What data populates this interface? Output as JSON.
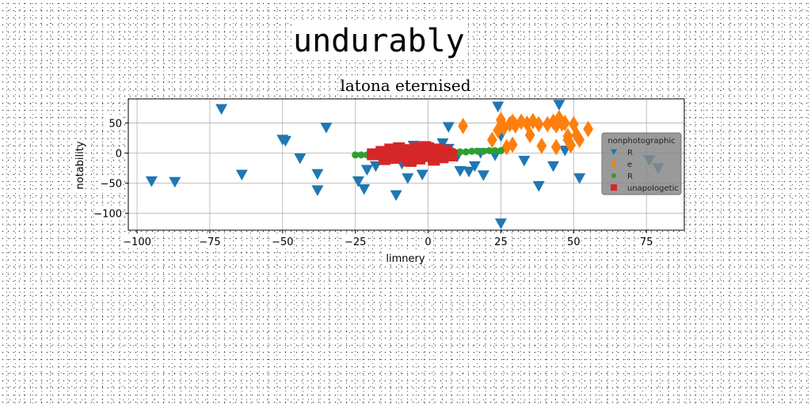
{
  "page": {
    "title": "undurably"
  },
  "chart_data": {
    "type": "scatter",
    "title": "latona eternised",
    "xlabel": "limnery",
    "ylabel": "notability",
    "xlim": [
      -103,
      88
    ],
    "ylim": [
      -128,
      90
    ],
    "xticks": [
      -100,
      -75,
      -50,
      -25,
      0,
      25,
      50,
      75
    ],
    "yticks": [
      50,
      0,
      -50,
      -100
    ],
    "grid": true,
    "legend": {
      "title": "nonphotographic",
      "placement": "right"
    },
    "series": [
      {
        "name": "R",
        "marker": "triangle-down",
        "color": "#1f77b4",
        "points": [
          [
            -95,
            -47
          ],
          [
            -87,
            -48
          ],
          [
            -71,
            73
          ],
          [
            -64,
            -36
          ],
          [
            -50,
            22
          ],
          [
            -49,
            20
          ],
          [
            -44,
            -9
          ],
          [
            -38,
            -35
          ],
          [
            -38,
            -62
          ],
          [
            -35,
            42
          ],
          [
            -24,
            -47
          ],
          [
            -22,
            -60
          ],
          [
            -21,
            -28
          ],
          [
            -18,
            -22
          ],
          [
            -11,
            -70
          ],
          [
            -9,
            -18
          ],
          [
            -7,
            -42
          ],
          [
            -5,
            12
          ],
          [
            -2,
            -36
          ],
          [
            -1,
            8
          ],
          [
            3,
            -10
          ],
          [
            5,
            -2
          ],
          [
            5,
            16
          ],
          [
            7,
            7
          ],
          [
            7,
            43
          ],
          [
            10,
            -6
          ],
          [
            11,
            -30
          ],
          [
            14,
            -31
          ],
          [
            16,
            -22
          ],
          [
            18,
            0
          ],
          [
            19,
            -37
          ],
          [
            23,
            -4
          ],
          [
            24,
            77
          ],
          [
            25,
            28
          ],
          [
            25,
            -117
          ],
          [
            33,
            -13
          ],
          [
            38,
            -55
          ],
          [
            43,
            -22
          ],
          [
            45,
            80
          ],
          [
            47,
            4
          ],
          [
            52,
            -42
          ],
          [
            76,
            -12
          ],
          [
            79,
            -25
          ]
        ]
      },
      {
        "name": "e",
        "marker": "diamond",
        "color": "#ff7f0e",
        "points": [
          [
            12,
            45
          ],
          [
            22,
            22
          ],
          [
            24,
            38
          ],
          [
            25,
            55
          ],
          [
            26,
            42
          ],
          [
            27,
            10
          ],
          [
            28,
            48
          ],
          [
            29,
            52
          ],
          [
            29,
            14
          ],
          [
            30,
            46
          ],
          [
            32,
            52
          ],
          [
            34,
            49
          ],
          [
            35,
            30
          ],
          [
            36,
            53
          ],
          [
            38,
            48
          ],
          [
            39,
            12
          ],
          [
            41,
            48
          ],
          [
            43,
            52
          ],
          [
            44,
            46
          ],
          [
            44,
            10
          ],
          [
            45,
            58
          ],
          [
            46,
            49
          ],
          [
            47,
            50
          ],
          [
            48,
            28
          ],
          [
            48,
            22
          ],
          [
            49,
            13
          ],
          [
            50,
            48
          ],
          [
            51,
            30
          ],
          [
            52,
            22
          ],
          [
            55,
            40
          ]
        ]
      },
      {
        "name": "R",
        "marker": "circle",
        "color": "#2ca02c",
        "points": [
          [
            -25,
            -3
          ],
          [
            -23,
            -3
          ],
          [
            -21,
            -3
          ],
          [
            -19,
            -2
          ],
          [
            -17,
            -2
          ],
          [
            -15,
            -2
          ],
          [
            -13,
            -2
          ],
          [
            -11,
            -1
          ],
          [
            -9,
            -1
          ],
          [
            -7,
            -1
          ],
          [
            -5,
            0
          ],
          [
            -3,
            0
          ],
          [
            -1,
            0
          ],
          [
            1,
            0
          ],
          [
            3,
            1
          ],
          [
            5,
            1
          ],
          [
            7,
            1
          ],
          [
            9,
            2
          ],
          [
            11,
            2
          ],
          [
            13,
            2
          ],
          [
            15,
            3
          ],
          [
            17,
            3
          ],
          [
            19,
            3
          ],
          [
            21,
            4
          ],
          [
            23,
            4
          ],
          [
            25,
            4
          ]
        ]
      },
      {
        "name": "unapologetic",
        "marker": "square",
        "color": "#d62728",
        "points": [
          [
            -19,
            -2
          ],
          [
            -16,
            2
          ],
          [
            -14,
            -4
          ],
          [
            -13,
            6
          ],
          [
            -12,
            -8
          ],
          [
            -11,
            1
          ],
          [
            -10,
            8
          ],
          [
            -9,
            -5
          ],
          [
            -8,
            3
          ],
          [
            -7,
            -12
          ],
          [
            -6,
            5
          ],
          [
            -5,
            -1
          ],
          [
            -4,
            8
          ],
          [
            -3,
            -9
          ],
          [
            -2,
            2
          ],
          [
            -1,
            10
          ],
          [
            0,
            -5
          ],
          [
            1,
            3
          ],
          [
            2,
            -11
          ],
          [
            3,
            6
          ],
          [
            4,
            -2
          ],
          [
            5,
            -7
          ],
          [
            6,
            4
          ],
          [
            7,
            -1
          ],
          [
            8,
            -4
          ],
          [
            -15,
            -10
          ],
          [
            -6,
            -13
          ],
          [
            0,
            8
          ]
        ]
      }
    ]
  }
}
